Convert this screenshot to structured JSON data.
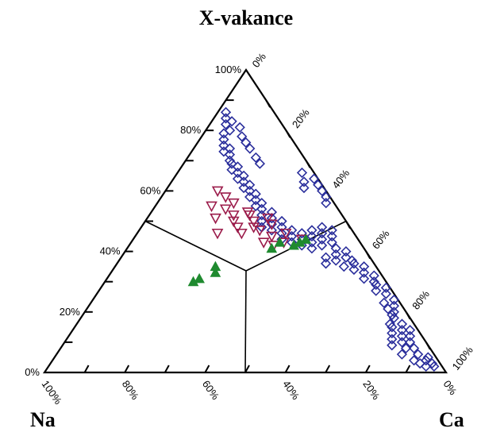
{
  "chart_data": {
    "type": "ternary-scatter",
    "title": "X-vakance",
    "corner_labels": {
      "bottom_left": "Na",
      "bottom_right": "Ca",
      "top": "X-vakance"
    },
    "left_axis_ticks": [
      "0%",
      "20%",
      "40%",
      "60%",
      "80%",
      "100%"
    ],
    "right_axis_ticks": [
      "0%",
      "20%",
      "40%",
      "60%",
      "80%",
      "100%"
    ],
    "bottom_axis_ticks": [
      "100%",
      "80%",
      "60%",
      "40%",
      "20%",
      "0%"
    ],
    "colors": {
      "blue": "#2b2f9c",
      "red": "#9b1b4a",
      "green": "#1f8a2f"
    },
    "series": [
      {
        "marker": "diamond",
        "color": "#2b2f9c",
        "points": [
          [
            0.02,
            0.96
          ],
          [
            0.03,
            0.95
          ],
          [
            0.04,
            0.93
          ],
          [
            0.05,
            0.93
          ],
          [
            0.02,
            0.94
          ],
          [
            0.03,
            0.92
          ],
          [
            0.04,
            0.9
          ],
          [
            0.06,
            0.9
          ],
          [
            0.08,
            0.88
          ],
          [
            0.1,
            0.86
          ],
          [
            0.12,
            0.85
          ],
          [
            0.14,
            0.84
          ],
          [
            0.1,
            0.84
          ],
          [
            0.08,
            0.86
          ],
          [
            0.06,
            0.86
          ],
          [
            0.12,
            0.83
          ],
          [
            0.14,
            0.82
          ],
          [
            0.16,
            0.81
          ],
          [
            0.09,
            0.82
          ],
          [
            0.11,
            0.81
          ],
          [
            0.13,
            0.8
          ],
          [
            0.15,
            0.79
          ],
          [
            0.18,
            0.78
          ],
          [
            0.2,
            0.77
          ],
          [
            0.22,
            0.76
          ],
          [
            0.24,
            0.75
          ],
          [
            0.16,
            0.78
          ],
          [
            0.19,
            0.77
          ],
          [
            0.21,
            0.75
          ],
          [
            0.23,
            0.73
          ],
          [
            0.26,
            0.72
          ],
          [
            0.28,
            0.71
          ],
          [
            0.27,
            0.69
          ],
          [
            0.29,
            0.68
          ],
          [
            0.3,
            0.67
          ],
          [
            0.32,
            0.66
          ],
          [
            0.31,
            0.64
          ],
          [
            0.33,
            0.63
          ],
          [
            0.35,
            0.62
          ],
          [
            0.34,
            0.6
          ],
          [
            0.36,
            0.59
          ],
          [
            0.37,
            0.58
          ],
          [
            0.35,
            0.57
          ],
          [
            0.38,
            0.56
          ],
          [
            0.4,
            0.55
          ],
          [
            0.37,
            0.54
          ],
          [
            0.39,
            0.53
          ],
          [
            0.41,
            0.52
          ],
          [
            0.36,
            0.52
          ],
          [
            0.38,
            0.51
          ],
          [
            0.43,
            0.5
          ],
          [
            0.45,
            0.49
          ],
          [
            0.47,
            0.48
          ],
          [
            0.42,
            0.48
          ],
          [
            0.44,
            0.47
          ],
          [
            0.46,
            0.46
          ],
          [
            0.41,
            0.46
          ],
          [
            0.43,
            0.45
          ],
          [
            0.48,
            0.45
          ],
          [
            0.45,
            0.44
          ],
          [
            0.47,
            0.43
          ],
          [
            0.42,
            0.43
          ],
          [
            0.44,
            0.42
          ],
          [
            0.46,
            0.41
          ],
          [
            0.43,
            0.4
          ],
          [
            0.45,
            0.39
          ],
          [
            0.47,
            0.38
          ],
          [
            0.44,
            0.37
          ],
          [
            0.46,
            0.36
          ],
          [
            0.48,
            0.35
          ],
          [
            0.5,
            0.34
          ],
          [
            0.47,
            0.33
          ],
          [
            0.49,
            0.32
          ],
          [
            0.51,
            0.31
          ],
          [
            0.53,
            0.3
          ],
          [
            0.48,
            0.3
          ],
          [
            0.5,
            0.29
          ],
          [
            0.52,
            0.28
          ],
          [
            0.54,
            0.27
          ],
          [
            0.56,
            0.26
          ],
          [
            0.55,
            0.25
          ],
          [
            0.57,
            0.24
          ],
          [
            0.59,
            0.23
          ],
          [
            0.58,
            0.22
          ],
          [
            0.6,
            0.21
          ],
          [
            0.62,
            0.2
          ],
          [
            0.61,
            0.19
          ],
          [
            0.63,
            0.18
          ],
          [
            0.65,
            0.17
          ],
          [
            0.64,
            0.16
          ],
          [
            0.66,
            0.15
          ],
          [
            0.68,
            0.14
          ],
          [
            0.67,
            0.13
          ],
          [
            0.69,
            0.12
          ],
          [
            0.7,
            0.11
          ],
          [
            0.72,
            0.1
          ],
          [
            0.74,
            0.09
          ],
          [
            0.73,
            0.08
          ],
          [
            0.75,
            0.07
          ],
          [
            0.77,
            0.06
          ],
          [
            0.79,
            0.05
          ],
          [
            0.8,
            0.06
          ],
          [
            0.82,
            0.04
          ],
          [
            0.84,
            0.03
          ],
          [
            0.86,
            0.02
          ],
          [
            0.83,
            0.05
          ],
          [
            0.81,
            0.08
          ],
          [
            0.78,
            0.1
          ],
          [
            0.76,
            0.12
          ],
          [
            0.74,
            0.14
          ],
          [
            0.71,
            0.17
          ],
          [
            0.69,
            0.19
          ],
          [
            0.56,
            0.42
          ],
          [
            0.58,
            0.41
          ],
          [
            0.6,
            0.39
          ],
          [
            0.62,
            0.37
          ],
          [
            0.64,
            0.35
          ],
          [
            0.61,
            0.34
          ],
          [
            0.63,
            0.33
          ],
          [
            0.66,
            0.31
          ]
        ]
      },
      {
        "marker": "triangle-down",
        "color": "#9b1b4a",
        "points": [
          [
            0.44,
            0.42
          ],
          [
            0.43,
            0.38
          ],
          [
            0.46,
            0.37
          ],
          [
            0.42,
            0.36
          ],
          [
            0.45,
            0.34
          ],
          [
            0.43,
            0.33
          ],
          [
            0.49,
            0.32
          ],
          [
            0.47,
            0.3
          ],
          [
            0.51,
            0.3
          ],
          [
            0.48,
            0.28
          ],
          [
            0.5,
            0.27
          ],
          [
            0.46,
            0.26
          ],
          [
            0.52,
            0.25
          ],
          [
            0.53,
            0.24
          ],
          [
            0.48,
            0.24
          ],
          [
            0.5,
            0.22
          ],
          [
            0.52,
            0.21
          ],
          [
            0.46,
            0.2
          ],
          [
            0.56,
            0.19
          ],
          [
            0.54,
            0.18
          ],
          [
            0.58,
            0.16
          ],
          [
            0.51,
            0.17
          ],
          [
            0.55,
            0.14
          ],
          [
            0.6,
            0.13
          ]
        ]
      },
      {
        "marker": "triangle-up",
        "color": "#1f8a2f",
        "points": [
          [
            0.43,
            0.42
          ],
          [
            0.44,
            0.43
          ],
          [
            0.42,
            0.41
          ],
          [
            0.41,
            0.36
          ],
          [
            0.43,
            0.37
          ],
          [
            0.33,
            0.26
          ],
          [
            0.35,
            0.25
          ],
          [
            0.31,
            0.23
          ],
          [
            0.3,
            0.22
          ]
        ]
      }
    ]
  }
}
